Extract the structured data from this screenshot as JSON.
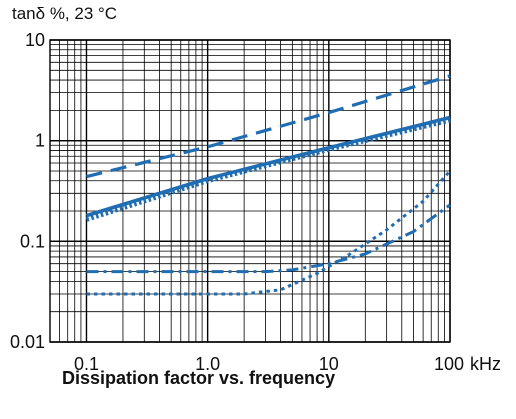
{
  "chart_data": {
    "type": "line",
    "title": "Dissipation factor vs. frequency",
    "ylabel": "tanδ %, 23 °C",
    "xunit": "kHz",
    "xscale": "log",
    "yscale": "log",
    "xlim": [
      0.05,
      100
    ],
    "ylim": [
      0.01,
      10
    ],
    "grid": true,
    "x_ticks": [
      {
        "value": 0.1,
        "label": "0.1"
      },
      {
        "value": 1,
        "label": "1.0"
      },
      {
        "value": 10,
        "label": "10"
      },
      {
        "value": 100,
        "label": "100"
      }
    ],
    "y_ticks": [
      {
        "value": 0.01,
        "label": "0.01"
      },
      {
        "value": 0.1,
        "label": "0.1"
      },
      {
        "value": 1,
        "label": "1"
      },
      {
        "value": 10,
        "label": "10"
      }
    ],
    "line_color": "#1f6db3",
    "series": [
      {
        "style": "dashed",
        "x": [
          0.1,
          1,
          10,
          100
        ],
        "y": [
          0.44,
          0.87,
          1.9,
          4.4
        ]
      },
      {
        "style": "solid",
        "x": [
          0.1,
          1,
          10,
          100
        ],
        "y": [
          0.18,
          0.42,
          0.85,
          1.7
        ]
      },
      {
        "style": "dotted-thick",
        "x": [
          0.1,
          1,
          10,
          100
        ],
        "y": [
          0.165,
          0.4,
          0.82,
          1.6
        ]
      },
      {
        "style": "dash-dot",
        "x": [
          0.1,
          0.5,
          1,
          3,
          5,
          10,
          20,
          50,
          100
        ],
        "y": [
          0.05,
          0.05,
          0.05,
          0.05,
          0.052,
          0.06,
          0.075,
          0.125,
          0.23
        ]
      },
      {
        "style": "dotted",
        "x": [
          0.1,
          0.5,
          1,
          2,
          4,
          8,
          15,
          30,
          60,
          100
        ],
        "y": [
          0.03,
          0.03,
          0.03,
          0.03,
          0.033,
          0.048,
          0.075,
          0.13,
          0.25,
          0.5
        ]
      }
    ]
  }
}
